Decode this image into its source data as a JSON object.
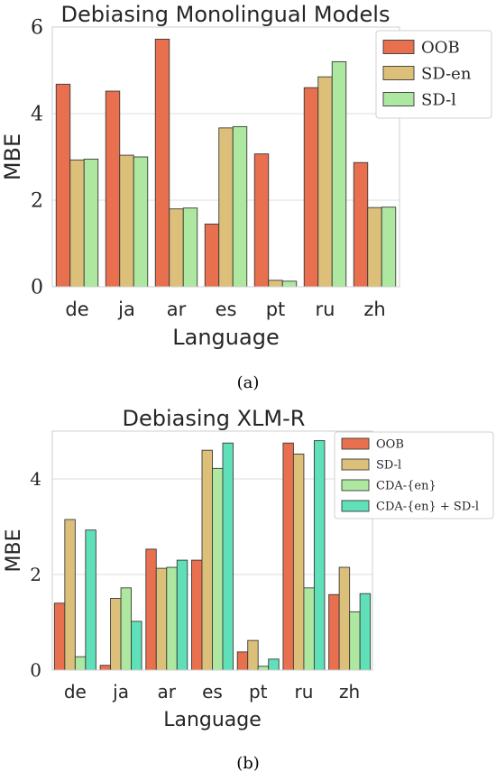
{
  "chart_data": [
    {
      "type": "bar",
      "title": "Debiasing Monolingual Models",
      "xlabel": "Language",
      "ylabel": "MBE",
      "caption": "(a)",
      "categories": [
        "de",
        "ja",
        "ar",
        "es",
        "pt",
        "ru",
        "zh"
      ],
      "ylim": [
        0,
        6
      ],
      "yticks": [
        "0",
        "2",
        "4",
        "6"
      ],
      "ytick_values": [
        0,
        2,
        4,
        6
      ],
      "grid": true,
      "legend_position": "top-right",
      "series": [
        {
          "name": "OOB",
          "color": "#e8704f",
          "values": [
            4.68,
            4.52,
            5.72,
            1.45,
            3.07,
            4.6,
            2.87
          ]
        },
        {
          "name": "SD-en",
          "color": "#dcc07a",
          "values": [
            2.93,
            3.04,
            1.8,
            3.67,
            0.15,
            4.85,
            1.83
          ]
        },
        {
          "name": "SD-l",
          "color": "#aee8a0",
          "values": [
            2.95,
            3.0,
            1.82,
            3.7,
            0.13,
            5.2,
            1.84
          ]
        }
      ]
    },
    {
      "type": "bar",
      "title": "Debiasing XLM-R",
      "xlabel": "Language",
      "ylabel": "MBE",
      "caption": "(b)",
      "categories": [
        "de",
        "ja",
        "ar",
        "es",
        "pt",
        "ru",
        "zh"
      ],
      "ylim": [
        0,
        5
      ],
      "yticks": [
        "0",
        "2",
        "4"
      ],
      "ytick_values": [
        0,
        2,
        4
      ],
      "grid": true,
      "legend_position": "top-right",
      "series": [
        {
          "name": "OOB",
          "color": "#e8704f",
          "values": [
            1.4,
            0.1,
            2.53,
            2.3,
            0.38,
            4.75,
            1.58
          ]
        },
        {
          "name": "SD-l",
          "color": "#dcc07a",
          "values": [
            3.15,
            1.5,
            2.13,
            4.6,
            0.62,
            4.52,
            2.15
          ]
        },
        {
          "name": "CDA-{en}",
          "color": "#aee8a0",
          "values": [
            0.28,
            1.72,
            2.15,
            4.22,
            0.08,
            1.72,
            1.22
          ]
        },
        {
          "name": "CDA-{en} + SD-l",
          "color": "#5fe0b8",
          "values": [
            2.93,
            1.02,
            2.3,
            4.75,
            0.23,
            4.8,
            1.6
          ]
        }
      ]
    }
  ]
}
